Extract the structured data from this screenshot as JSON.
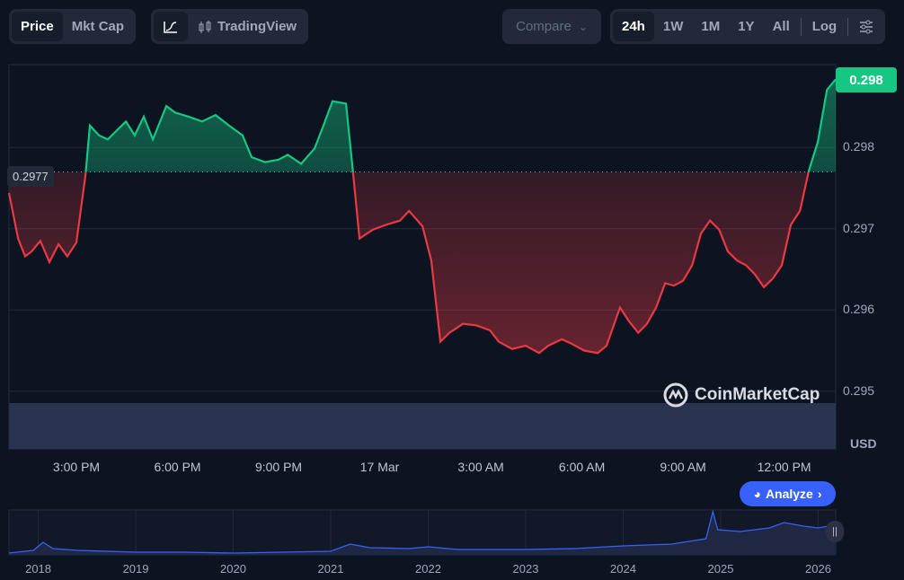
{
  "toolbar": {
    "metric_tabs": [
      "Price",
      "Mkt Cap"
    ],
    "chart_type": {
      "line_icon": "line-chart-icon",
      "tradingview_icon": "candlestick-icon",
      "tradingview_label": "TradingView"
    },
    "compare_label": "Compare",
    "ranges": [
      "24h",
      "1W",
      "1M",
      "1Y",
      "All"
    ],
    "log_label": "Log",
    "settings_icon": "sliders-icon"
  },
  "colors": {
    "up": "#16c784",
    "down": "#ea3943",
    "accent": "#3861fb",
    "background": "#0d1421"
  },
  "watermark": "CoinMarketCap",
  "analyze_label": "Analyze",
  "chart_data": {
    "type": "line",
    "title": "",
    "xlabel": "",
    "ylabel": "USD",
    "currency_label": "USD",
    "open_price_label": "0.2977",
    "open_price": 0.2977,
    "current_price_label": "0.298",
    "x_unit": "hours since start",
    "xlim": [
      0,
      24.53
    ],
    "ylim": [
      0.29429,
      0.29902
    ],
    "x_ticks": [
      {
        "v": 2,
        "label": "3:00 PM"
      },
      {
        "v": 5,
        "label": "6:00 PM"
      },
      {
        "v": 8,
        "label": "9:00 PM"
      },
      {
        "v": 11,
        "label": "17 Mar"
      },
      {
        "v": 14,
        "label": "3:00 AM"
      },
      {
        "v": 17,
        "label": "6:00 AM"
      },
      {
        "v": 20,
        "label": "9:00 AM"
      },
      {
        "v": 23,
        "label": "12:00 PM"
      }
    ],
    "y_ticks": [
      {
        "v": 0.298,
        "label": "0.298"
      },
      {
        "v": 0.297,
        "label": "0.297"
      },
      {
        "v": 0.296,
        "label": "0.296"
      },
      {
        "v": 0.295,
        "label": "0.295"
      }
    ],
    "x": [
      0,
      0.27,
      0.48,
      0.67,
      0.93,
      1.2,
      1.47,
      1.73,
      2,
      2.27,
      2.4,
      2.67,
      2.93,
      3.2,
      3.47,
      3.73,
      4,
      4.27,
      4.67,
      4.93,
      5.33,
      5.73,
      6.13,
      6.53,
      6.93,
      7.2,
      7.6,
      8,
      8.27,
      8.67,
      9.07,
      9.33,
      9.6,
      10,
      10.19,
      10.4,
      10.8,
      11.2,
      11.6,
      11.87,
      12.27,
      12.53,
      12.8,
      13.07,
      13.47,
      13.87,
      14.27,
      14.53,
      14.93,
      15.33,
      15.73,
      16,
      16.4,
      16.67,
      17.07,
      17.47,
      17.73,
      18.13,
      18.4,
      18.67,
      18.93,
      19.2,
      19.47,
      19.73,
      20,
      20.27,
      20.53,
      20.8,
      21.07,
      21.33,
      21.6,
      21.87,
      22.13,
      22.4,
      22.67,
      22.93,
      23.2,
      23.47,
      23.73,
      24,
      24.27,
      24.53
    ],
    "y": [
      0.29744,
      0.29688,
      0.29666,
      0.29672,
      0.29685,
      0.29659,
      0.29681,
      0.29666,
      0.29683,
      0.29766,
      0.29827,
      0.29815,
      0.2981,
      0.29821,
      0.29832,
      0.29815,
      0.29838,
      0.2981,
      0.29851,
      0.29843,
      0.29838,
      0.29832,
      0.2984,
      0.29827,
      0.29815,
      0.29788,
      0.29782,
      0.29785,
      0.29791,
      0.2978,
      0.29799,
      0.29827,
      0.29857,
      0.29854,
      0.29777,
      0.29688,
      0.29699,
      0.29705,
      0.2971,
      0.29722,
      0.29703,
      0.29661,
      0.29561,
      0.29572,
      0.29583,
      0.29581,
      0.29575,
      0.29561,
      0.29552,
      0.29556,
      0.29547,
      0.29556,
      0.29564,
      0.29559,
      0.2955,
      0.29547,
      0.29556,
      0.29603,
      0.29586,
      0.29572,
      0.29583,
      0.29603,
      0.29633,
      0.2963,
      0.29636,
      0.29655,
      0.29694,
      0.2971,
      0.29699,
      0.29672,
      0.29661,
      0.29655,
      0.29644,
      0.29628,
      0.29639,
      0.29655,
      0.29705,
      0.29722,
      0.29771,
      0.29807,
      0.29871,
      0.29884
    ],
    "navigator": {
      "year_ticks": [
        "2018",
        "2019",
        "2020",
        "2021",
        "2022",
        "2023",
        "2024",
        "2025",
        "2026"
      ],
      "xlim": [
        2017.7,
        2026.18
      ],
      "x": [
        2017.7,
        2017.95,
        2018.05,
        2018.15,
        2018.4,
        2019,
        2019.5,
        2020,
        2020.5,
        2021,
        2021.2,
        2021.4,
        2021.8,
        2022,
        2022.3,
        2023,
        2023.5,
        2024,
        2024.5,
        2024.85,
        2024.92,
        2024.97,
        2025.2,
        2025.5,
        2025.65,
        2025.85,
        2026,
        2026.1,
        2026.18
      ],
      "y": [
        2,
        5,
        14,
        7,
        5,
        3,
        3,
        2,
        3,
        4,
        12,
        8,
        7,
        9,
        6,
        6,
        7,
        10,
        12,
        18,
        48,
        28,
        26,
        30,
        36,
        32,
        30,
        32,
        30
      ],
      "ylim": [
        0,
        50
      ]
    }
  }
}
